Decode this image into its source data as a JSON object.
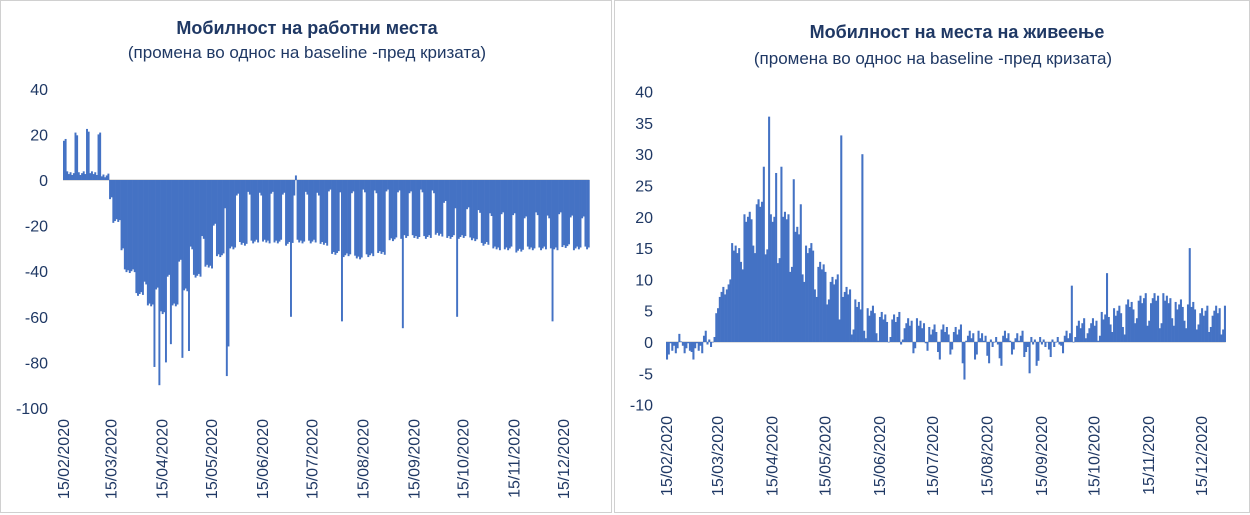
{
  "colors": {
    "bar": "#4472C4",
    "text": "#1F3864"
  },
  "chart_data": [
    {
      "type": "bar",
      "title": "Мобилност на работни места",
      "subtitle": "(промена во однос на baseline -пред кризата)",
      "xlabel": "",
      "ylabel": "",
      "ylim": [
        -100,
        40
      ],
      "yticks": [
        40,
        20,
        0,
        -20,
        -40,
        -60,
        -80,
        -100
      ],
      "xtick_labels": [
        "15/02/2020",
        "15/03/2020",
        "15/04/2020",
        "15/05/2020",
        "15/06/2020",
        "15/07/2020",
        "15/08/2020",
        "15/09/2020",
        "15/10/2020",
        "15/11/2020",
        "15/12/2020"
      ],
      "start_date": "2020-02-15",
      "num_days": 320,
      "weekly_weekday_weekend": [
        [
          3,
          18
        ],
        [
          3,
          20
        ],
        [
          3,
          22
        ],
        [
          2,
          20
        ],
        [
          -18,
          -8
        ],
        [
          -40,
          -30
        ],
        [
          -50,
          -40
        ],
        [
          -55,
          -45
        ],
        [
          -58,
          -48
        ],
        [
          -55,
          -42
        ],
        [
          -48,
          -35
        ],
        [
          -42,
          -30
        ],
        [
          -38,
          -25
        ],
        [
          -33,
          -20
        ],
        [
          -30,
          -12
        ],
        [
          -28,
          -6
        ],
        [
          -27,
          -6
        ],
        [
          -27,
          -6
        ],
        [
          -27,
          -6
        ],
        [
          -28,
          -6
        ],
        [
          -27,
          -6
        ],
        [
          -27,
          -6
        ],
        [
          -28,
          -6
        ],
        [
          -32,
          -5
        ],
        [
          -33,
          -5
        ],
        [
          -34,
          -5
        ],
        [
          -33,
          -5
        ],
        [
          -32,
          -5
        ],
        [
          -26,
          -5
        ],
        [
          -25,
          -5
        ],
        [
          -25,
          -5
        ],
        [
          -25,
          -5
        ],
        [
          -24,
          -5
        ],
        [
          -25,
          -10
        ],
        [
          -25,
          -12
        ],
        [
          -26,
          -12
        ],
        [
          -28,
          -14
        ],
        [
          -30,
          -15
        ],
        [
          -30,
          -15
        ],
        [
          -31,
          -15
        ],
        [
          -30,
          -16
        ],
        [
          -30,
          -15
        ],
        [
          -30,
          -16
        ],
        [
          -29,
          -15
        ],
        [
          -30,
          -16
        ],
        [
          -30,
          -16
        ]
      ],
      "holidays": [
        [
          "2020-04-10",
          -82
        ],
        [
          "2020-04-13",
          -90
        ],
        [
          "2020-04-17",
          -80
        ],
        [
          "2020-04-20",
          -72
        ],
        [
          "2020-04-27",
          -78
        ],
        [
          "2020-05-01",
          -75
        ],
        [
          "2020-05-24",
          -86
        ],
        [
          "2020-05-25",
          -73
        ],
        [
          "2020-07-02",
          -60
        ],
        [
          "2020-07-05",
          2
        ],
        [
          "2020-08-02",
          -62
        ],
        [
          "2020-09-08",
          -65
        ],
        [
          "2020-10-11",
          -60
        ],
        [
          "2020-12-08",
          -62
        ],
        [
          "2020-12-31",
          -40
        ]
      ]
    },
    {
      "type": "bar",
      "title": "Мобилност на места на живеење",
      "subtitle": "(промена во однос на baseline -пред кризата)",
      "xlabel": "",
      "ylabel": "",
      "ylim": [
        -10,
        40
      ],
      "yticks": [
        40,
        35,
        30,
        25,
        20,
        15,
        10,
        5,
        0,
        -5,
        -10
      ],
      "xtick_labels": [
        "15/02/2020",
        "15/03/2020",
        "15/04/2020",
        "15/05/2020",
        "15/06/2020",
        "15/07/2020",
        "15/08/2020",
        "15/09/2020",
        "15/10/2020",
        "15/11/2020",
        "15/12/2020"
      ],
      "start_date": "2020-02-15",
      "num_days": 318,
      "weekly_weekday_weekend": [
        [
          -1,
          -2
        ],
        [
          -1,
          0.5
        ],
        [
          -1,
          -2
        ],
        [
          0,
          1
        ],
        [
          8,
          5
        ],
        [
          15,
          10
        ],
        [
          20,
          12
        ],
        [
          22,
          15
        ],
        [
          20,
          14
        ],
        [
          20,
          13
        ],
        [
          18,
          12
        ],
        [
          15,
          10
        ],
        [
          12,
          8
        ],
        [
          10,
          6
        ],
        [
          8,
          4
        ],
        [
          6,
          2
        ],
        [
          5,
          1
        ],
        [
          4,
          1
        ],
        [
          4,
          0
        ],
        [
          3,
          0
        ],
        [
          3,
          -1
        ],
        [
          2,
          -1
        ],
        [
          2,
          -2
        ],
        [
          2,
          -2
        ],
        [
          1,
          -3
        ],
        [
          1,
          -2
        ],
        [
          0,
          -3
        ],
        [
          1,
          -3
        ],
        [
          1,
          -2
        ],
        [
          0,
          -2
        ],
        [
          0,
          -3
        ],
        [
          0,
          -2
        ],
        [
          1,
          -1
        ],
        [
          3,
          0
        ],
        [
          3,
          1
        ],
        [
          4,
          1
        ],
        [
          5,
          2
        ],
        [
          6,
          2
        ],
        [
          7,
          3
        ],
        [
          7,
          3
        ],
        [
          7,
          3
        ],
        [
          6,
          3
        ],
        [
          6,
          3
        ],
        [
          5,
          2
        ],
        [
          5,
          2
        ],
        [
          5,
          2
        ]
      ],
      "holidays": [
        [
          "2020-04-10",
          28
        ],
        [
          "2020-04-13",
          36
        ],
        [
          "2020-04-17",
          27
        ],
        [
          "2020-04-20",
          28
        ],
        [
          "2020-04-27",
          26
        ],
        [
          "2020-05-01",
          22
        ],
        [
          "2020-05-24",
          33
        ],
        [
          "2020-06-05",
          30
        ],
        [
          "2020-08-02",
          -6
        ],
        [
          "2020-09-08",
          -5
        ],
        [
          "2020-10-02",
          9
        ],
        [
          "2020-10-22",
          11
        ],
        [
          "2020-12-08",
          15
        ]
      ]
    }
  ]
}
